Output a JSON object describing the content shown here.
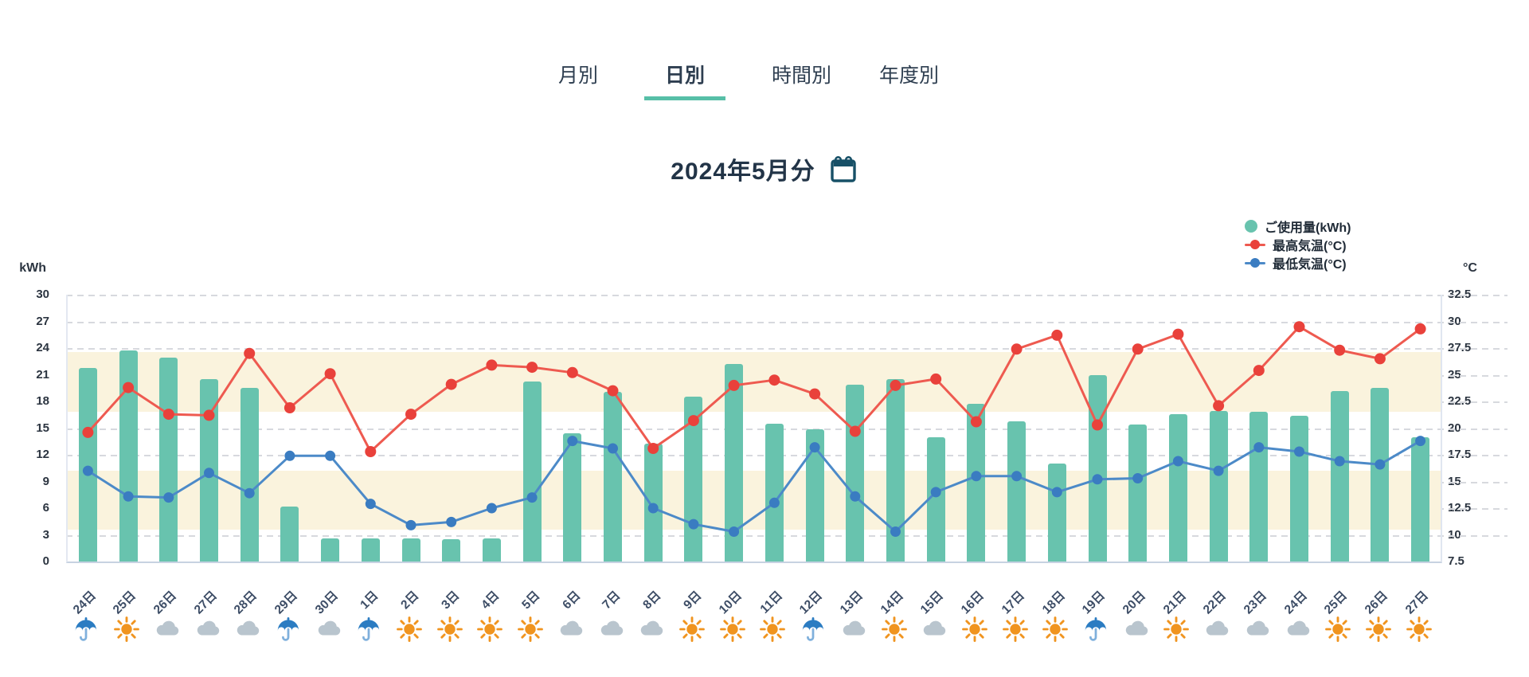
{
  "tabs": {
    "items": [
      {
        "label": "月別",
        "active": false
      },
      {
        "label": "日別",
        "active": true
      },
      {
        "label": "時間別",
        "active": false
      },
      {
        "label": "年度別",
        "active": false
      }
    ]
  },
  "period": {
    "label": "2024年5月分",
    "calendar_icon": "calendar-icon"
  },
  "legend": [
    {
      "label": "ご使用量(kWh)",
      "marker": "circle",
      "color": "#68c3ae"
    },
    {
      "label": "最高気温(°C)",
      "marker": "line-dot",
      "color": "#e9413b",
      "line_color": "#ee5a50"
    },
    {
      "label": "最低気温(°C)",
      "marker": "line-dot",
      "color": "#3a7cc1",
      "line_color": "#4c8ac8"
    }
  ],
  "axes": {
    "left_unit": "kWh",
    "right_unit": "°C",
    "left_ticks": [
      30,
      27,
      24,
      21,
      18,
      15,
      12,
      9,
      6,
      3,
      0
    ],
    "right_ticks": [
      "32.5",
      "30",
      "27.5",
      "25",
      "22.5",
      "20",
      "17.5",
      "15",
      "12.5",
      "10",
      "7.5"
    ]
  },
  "colors": {
    "bar_teal": "#68c3ae",
    "high_temp_red": "#e9413b",
    "high_temp_line": "#ee5a50",
    "low_temp_blue": "#3a7cc1",
    "low_temp_line": "#4c8ac8",
    "band_cream": "#faf3dd",
    "tab_underline_teal": "#57bfa7",
    "calendar_navy": "#175067",
    "sun_orange": "#f0941f",
    "cloud_gray": "#b9c5ce",
    "umbrella_blue": "#2b7cc2",
    "gridline_gray": "#d7d9de"
  },
  "chart_data": {
    "type": "bar+line",
    "title": "2024年5月分",
    "categories": [
      "24日",
      "25日",
      "26日",
      "27日",
      "28日",
      "29日",
      "30日",
      "1日",
      "2日",
      "3日",
      "4日",
      "5日",
      "6日",
      "7日",
      "8日",
      "9日",
      "10日",
      "11日",
      "12日",
      "13日",
      "14日",
      "15日",
      "16日",
      "17日",
      "18日",
      "19日",
      "20日",
      "21日",
      "22日",
      "23日",
      "24日",
      "25日",
      "26日",
      "27日"
    ],
    "weather": [
      "rain",
      "sunny",
      "cloudy",
      "cloudy",
      "cloudy",
      "rain",
      "cloudy",
      "rain",
      "sunny",
      "sunny",
      "sunny",
      "sunny",
      "cloudy",
      "cloudy",
      "cloudy",
      "sunny",
      "sunny",
      "sunny",
      "rain",
      "cloudy",
      "sunny",
      "cloudy",
      "sunny",
      "sunny",
      "sunny",
      "rain",
      "cloudy",
      "sunny",
      "cloudy",
      "cloudy",
      "cloudy",
      "sunny",
      "sunny",
      "sunny"
    ],
    "series": [
      {
        "name": "ご使用量(kWh)",
        "type": "bar",
        "axis": "left",
        "color": "#68c3ae",
        "values": [
          21.8,
          23.7,
          22.9,
          20.5,
          19.5,
          6.2,
          2.6,
          2.6,
          2.6,
          2.5,
          2.6,
          20.2,
          14.4,
          19.1,
          13.3,
          18.5,
          22.2,
          15.5,
          14.9,
          19.9,
          20.5,
          14.0,
          17.7,
          15.8,
          11.0,
          21.0,
          15.4,
          16.6,
          16.9,
          16.8,
          16.4,
          19.2,
          19.5,
          14.0
        ]
      },
      {
        "name": "最高気温(°C)",
        "type": "line",
        "axis": "right",
        "color": "#e9413b",
        "values": [
          19.6,
          23.8,
          21.3,
          21.2,
          27.0,
          21.9,
          25.1,
          17.8,
          21.3,
          24.1,
          25.9,
          25.7,
          25.2,
          23.5,
          18.1,
          20.7,
          24.0,
          24.5,
          23.2,
          19.7,
          24.0,
          24.6,
          20.6,
          27.4,
          28.7,
          20.3,
          27.4,
          28.8,
          22.1,
          25.4,
          29.5,
          27.3,
          26.5,
          29.3
        ]
      },
      {
        "name": "最低気温(°C)",
        "type": "line",
        "axis": "right",
        "color": "#3a7cc1",
        "values": [
          16.0,
          13.6,
          13.5,
          15.8,
          13.9,
          17.4,
          17.4,
          12.9,
          10.9,
          11.2,
          12.5,
          13.5,
          18.8,
          18.1,
          12.5,
          11.0,
          10.3,
          13.0,
          18.2,
          13.6,
          10.3,
          14.0,
          15.5,
          15.5,
          14.0,
          15.2,
          15.3,
          16.9,
          16.0,
          18.2,
          17.8,
          16.9,
          16.6,
          18.8
        ]
      }
    ],
    "ylim_left": [
      0,
      30
    ],
    "ylim_right": [
      7.5,
      32.5
    ],
    "bands_c": [
      [
        21.5,
        27.1
      ],
      [
        10.5,
        16.0
      ]
    ],
    "grid": "dashed-horizontal",
    "legend_position": "top-right",
    "xlabel": "",
    "ylabel_left": "kWh",
    "ylabel_right": "°C"
  }
}
